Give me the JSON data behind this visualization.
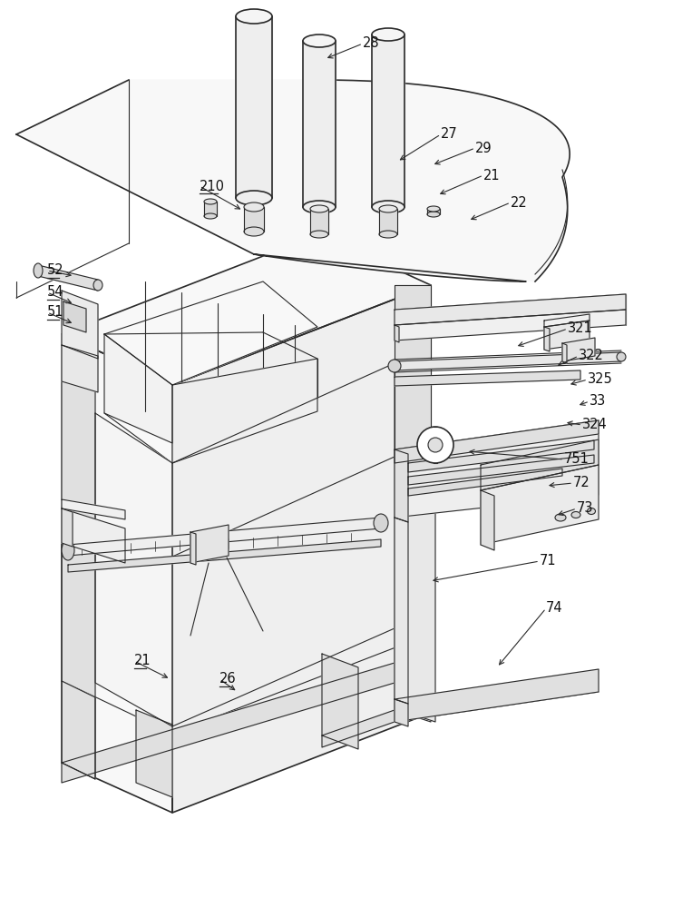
{
  "bg_color": "#ffffff",
  "lc": "#2a2a2a",
  "lw_main": 1.2,
  "lw_thin": 0.8,
  "fill_light": "#f8f8f8",
  "fill_mid": "#efefef",
  "fill_dark": "#e0e0e0",
  "labels_plain": [
    [
      "28",
      400,
      48
    ],
    [
      "27",
      486,
      148
    ],
    [
      "29",
      524,
      163
    ],
    [
      "21",
      533,
      193
    ],
    [
      "22",
      563,
      223
    ],
    [
      "321",
      626,
      362
    ],
    [
      "322",
      638,
      392
    ],
    [
      "325",
      648,
      418
    ],
    [
      "33",
      650,
      442
    ],
    [
      "324",
      642,
      468
    ],
    [
      "751",
      622,
      506
    ],
    [
      "72",
      632,
      532
    ],
    [
      "73",
      636,
      560
    ],
    [
      "71",
      595,
      618
    ],
    [
      "74",
      602,
      670
    ]
  ],
  "labels_underline": [
    [
      "210",
      220,
      205
    ],
    [
      "52",
      52,
      298
    ],
    [
      "54",
      52,
      322
    ],
    [
      "51",
      52,
      344
    ],
    [
      "21",
      148,
      728
    ],
    [
      "26",
      242,
      748
    ]
  ],
  "arrows": [
    [
      400,
      48,
      358,
      65
    ],
    [
      486,
      148,
      438,
      178
    ],
    [
      524,
      163,
      476,
      182
    ],
    [
      533,
      193,
      482,
      215
    ],
    [
      563,
      223,
      516,
      243
    ],
    [
      220,
      205,
      268,
      232
    ],
    [
      626,
      362,
      568,
      382
    ],
    [
      638,
      392,
      612,
      404
    ],
    [
      648,
      418,
      626,
      424
    ],
    [
      650,
      442,
      636,
      447
    ],
    [
      642,
      468,
      622,
      465
    ],
    [
      622,
      506,
      514,
      497
    ],
    [
      632,
      532,
      602,
      535
    ],
    [
      636,
      560,
      612,
      568
    ],
    [
      595,
      618,
      474,
      640
    ],
    [
      602,
      670,
      548,
      735
    ],
    [
      52,
      298,
      82,
      304
    ],
    [
      52,
      322,
      82,
      335
    ],
    [
      52,
      344,
      82,
      357
    ],
    [
      148,
      728,
      188,
      748
    ],
    [
      242,
      748,
      262,
      762
    ]
  ]
}
